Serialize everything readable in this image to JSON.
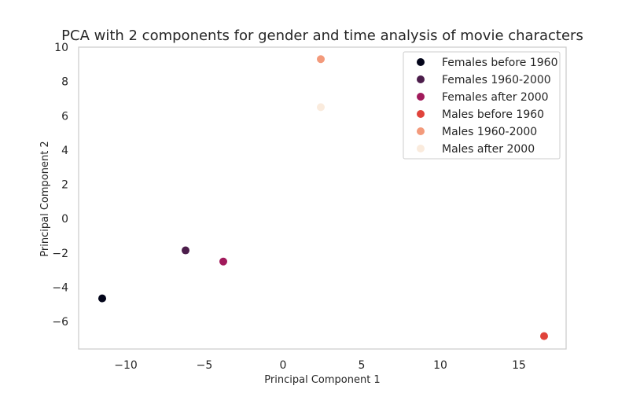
{
  "chart_data": {
    "type": "scatter",
    "title": "PCA with 2 components for gender and time analysis of movie characters",
    "xlabel": "Principal Component 1",
    "ylabel": "Principal Component 2",
    "xlim": [
      -13,
      18
    ],
    "ylim": [
      -7.6,
      10
    ],
    "xticks": [
      -10,
      -5,
      0,
      5,
      10,
      15
    ],
    "yticks": [
      -6,
      -4,
      -2,
      0,
      2,
      4,
      6,
      8,
      10
    ],
    "xtick_labels": [
      "−10",
      "−5",
      "0",
      "5",
      "10",
      "15"
    ],
    "ytick_labels": [
      "−6",
      "−4",
      "−2",
      "0",
      "2",
      "4",
      "6",
      "8",
      "10"
    ],
    "grid": false,
    "legend_position": "top-right",
    "series": [
      {
        "name": "Females before 1960",
        "color": "#03051a",
        "x": [
          -11.5
        ],
        "y": [
          -4.65
        ]
      },
      {
        "name": "Females 1960-2000",
        "color": "#4c1d4b",
        "x": [
          -6.2
        ],
        "y": [
          -1.85
        ]
      },
      {
        "name": "Females after 2000",
        "color": "#a11a5b",
        "x": [
          -3.8
        ],
        "y": [
          -2.5
        ]
      },
      {
        "name": "Males before 1960",
        "color": "#e0433b",
        "x": [
          16.6
        ],
        "y": [
          -6.85
        ]
      },
      {
        "name": "Males 1960-2000",
        "color": "#f39a7b",
        "x": [
          2.4
        ],
        "y": [
          9.3
        ]
      },
      {
        "name": "Males after 2000",
        "color": "#faebdd",
        "x": [
          2.4
        ],
        "y": [
          6.5
        ]
      }
    ]
  }
}
